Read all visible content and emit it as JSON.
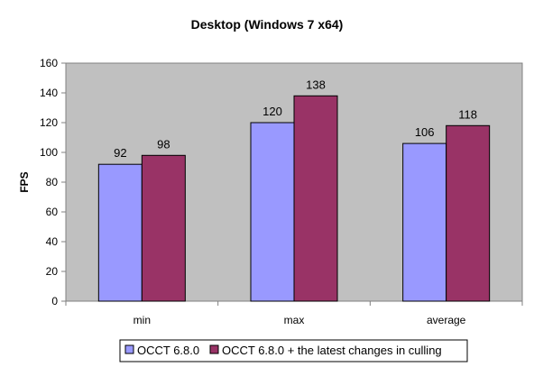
{
  "chart_data": {
    "type": "bar",
    "title": "Desktop (Windows 7 x64)",
    "xlabel": "",
    "ylabel": "FPS",
    "ylim": [
      0,
      160
    ],
    "yticks": [
      0,
      20,
      40,
      60,
      80,
      100,
      120,
      140,
      160
    ],
    "categories": [
      "min",
      "max",
      "average"
    ],
    "series": [
      {
        "name": "OCCT 6.8.0",
        "values": [
          92,
          120,
          106
        ],
        "color": "#9999ff"
      },
      {
        "name": "OCCT 6.8.0 + the latest changes in culling",
        "values": [
          98,
          138,
          118
        ],
        "color": "#993366"
      }
    ],
    "plot_background": "#c0c0c0",
    "grid": false,
    "legend_position": "bottom"
  }
}
